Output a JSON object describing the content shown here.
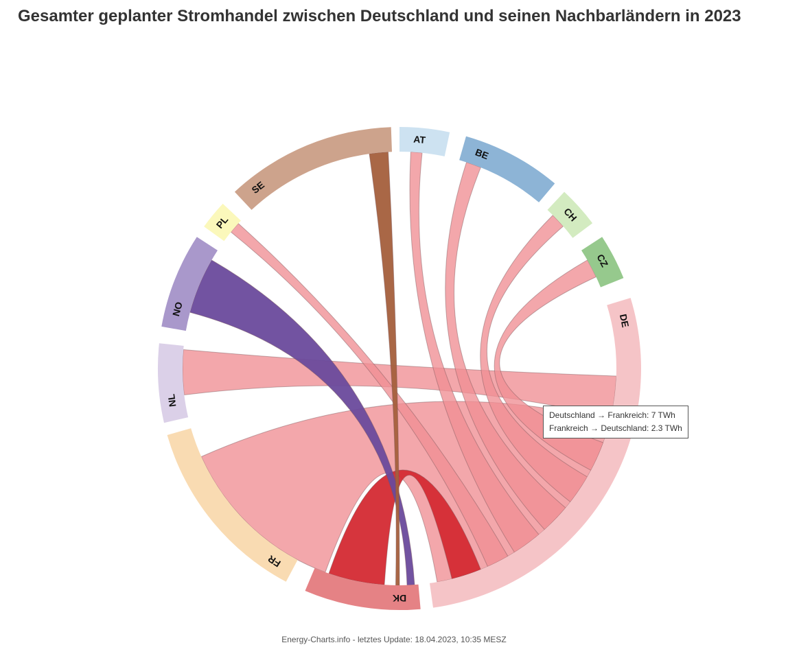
{
  "title": "Gesamter geplanter Stromhandel zwischen Deutschland und seinen Nachbarländern in 2023",
  "footer": "Energy-Charts.info - letztes Update: 18.04.2023, 10:35 MESZ",
  "tooltip": {
    "line1": "Deutschland → Frankreich: 7 TWh",
    "line2": "Frankreich → Deutschland: 2.3 TWh"
  },
  "chart_data": {
    "type": "chord",
    "groups": [
      {
        "label": "AT",
        "color": "#cde2f1"
      },
      {
        "label": "BE",
        "color": "#8db4d6"
      },
      {
        "label": "CH",
        "color": "#d3ebc0"
      },
      {
        "label": "CZ",
        "color": "#96c98d"
      },
      {
        "label": "DE",
        "color": "#f5c4c7"
      },
      {
        "label": "DK",
        "color": "#e58285"
      },
      {
        "label": "FR",
        "color": "#f9dbb2"
      },
      {
        "label": "NL",
        "color": "#dbd0e8"
      },
      {
        "label": "NO",
        "color": "#a998cb"
      },
      {
        "label": "PL",
        "color": "#fbf8bb"
      },
      {
        "label": "SE",
        "color": "#cda38c"
      }
    ],
    "colors": {
      "de_chord": "#ef8e94",
      "dk_chord": "#d42a33",
      "no_chord": "#6a4a9c",
      "se_chord": "#a45f3c"
    }
  }
}
